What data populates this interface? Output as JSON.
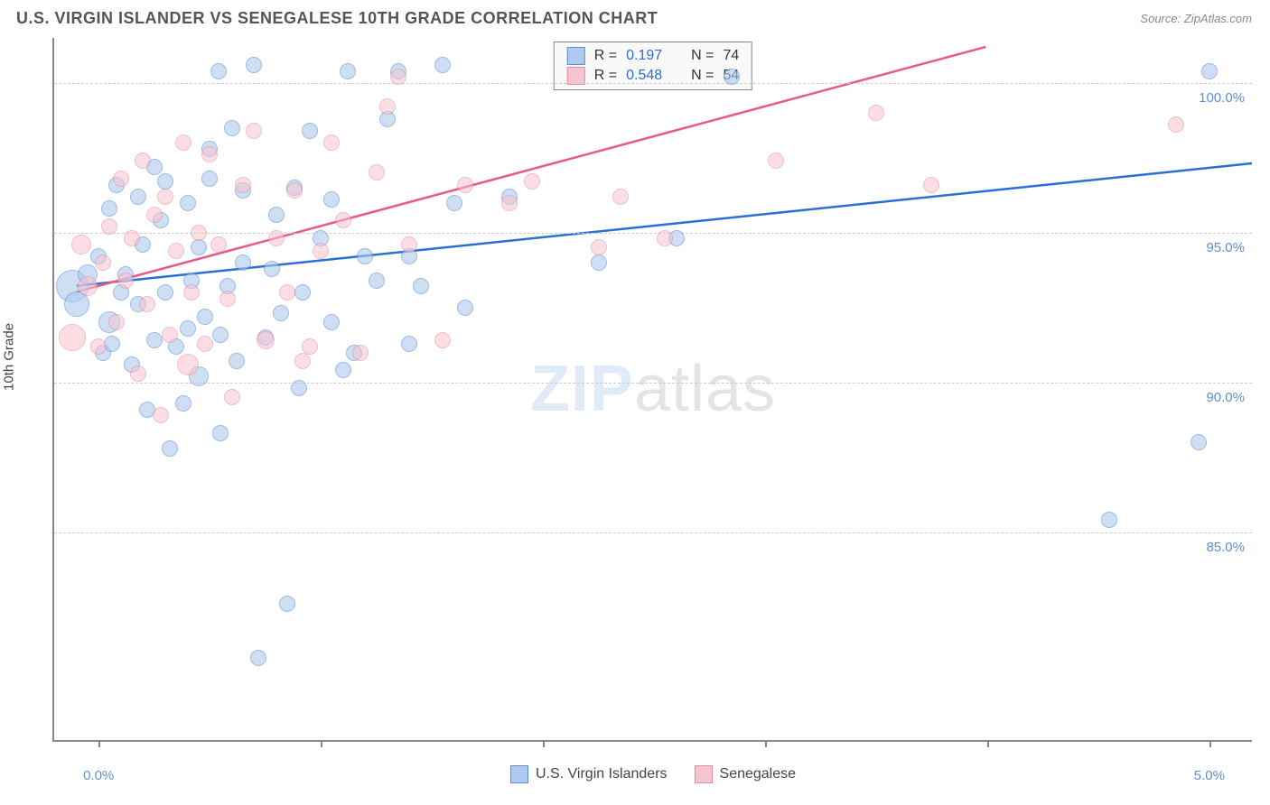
{
  "header": {
    "title": "U.S. VIRGIN ISLANDER VS SENEGALESE 10TH GRADE CORRELATION CHART",
    "source_label": "Source:",
    "source_value": "ZipAtlas.com"
  },
  "chart": {
    "type": "scatter",
    "ylabel": "10th Grade",
    "xlim": [
      -0.2,
      5.2
    ],
    "ylim": [
      78,
      101.5
    ],
    "xticks": [
      0,
      1,
      2,
      3,
      4,
      5
    ],
    "xtick_labels_shown": {
      "0": "0.0%",
      "5": "5.0%"
    },
    "yticks": [
      85,
      90,
      95,
      100
    ],
    "ytick_labels": [
      "85.0%",
      "90.0%",
      "95.0%",
      "100.0%"
    ],
    "grid_color": "#cccccc",
    "axis_color": "#888888",
    "background_color": "#ffffff",
    "watermark": {
      "text_bold": "ZIP",
      "text_rest": "atlas"
    },
    "series": [
      {
        "name": "U.S. Virgin Islanders",
        "fill_color": "#aecbee",
        "stroke_color": "#5b8fd6",
        "fill_opacity": 0.6,
        "marker_radius": 9,
        "trend": {
          "color": "#2b6fd4",
          "width": 2.5,
          "x1": -0.1,
          "y1": 93.2,
          "x2": 5.2,
          "y2": 97.3
        },
        "R": "0.197",
        "N": "74",
        "points": [
          [
            -0.12,
            93.2,
            18
          ],
          [
            -0.1,
            92.6,
            14
          ],
          [
            -0.05,
            93.6,
            11
          ],
          [
            0.0,
            94.2,
            9
          ],
          [
            0.02,
            91.0,
            9
          ],
          [
            0.05,
            92.0,
            12
          ],
          [
            0.05,
            95.8,
            9
          ],
          [
            0.06,
            91.3,
            9
          ],
          [
            0.08,
            96.6,
            9
          ],
          [
            0.1,
            93.0,
            9
          ],
          [
            0.12,
            93.6,
            9
          ],
          [
            0.15,
            90.6,
            9
          ],
          [
            0.18,
            92.6,
            9
          ],
          [
            0.18,
            96.2,
            9
          ],
          [
            0.2,
            94.6,
            9
          ],
          [
            0.22,
            89.1,
            9
          ],
          [
            0.25,
            97.2,
            9
          ],
          [
            0.25,
            91.4,
            9
          ],
          [
            0.28,
            95.4,
            9
          ],
          [
            0.3,
            93.0,
            9
          ],
          [
            0.3,
            96.7,
            9
          ],
          [
            0.32,
            87.8,
            9
          ],
          [
            0.35,
            91.2,
            9
          ],
          [
            0.38,
            89.3,
            9
          ],
          [
            0.4,
            96.0,
            9
          ],
          [
            0.4,
            91.8,
            9
          ],
          [
            0.42,
            93.4,
            9
          ],
          [
            0.45,
            94.5,
            9
          ],
          [
            0.45,
            90.2,
            11
          ],
          [
            0.48,
            92.2,
            9
          ],
          [
            0.5,
            97.8,
            9
          ],
          [
            0.5,
            96.8,
            9
          ],
          [
            0.54,
            100.4,
            9
          ],
          [
            0.55,
            91.6,
            9
          ],
          [
            0.55,
            88.3,
            9
          ],
          [
            0.58,
            93.2,
            9
          ],
          [
            0.6,
            98.5,
            9
          ],
          [
            0.62,
            90.7,
            9
          ],
          [
            0.65,
            94.0,
            9
          ],
          [
            0.65,
            96.4,
            9
          ],
          [
            0.7,
            100.6,
            9
          ],
          [
            0.72,
            80.8,
            9
          ],
          [
            0.75,
            91.5,
            9
          ],
          [
            0.78,
            93.8,
            9
          ],
          [
            0.8,
            95.6,
            9
          ],
          [
            0.82,
            92.3,
            9
          ],
          [
            0.85,
            82.6,
            9
          ],
          [
            0.88,
            96.5,
            9
          ],
          [
            0.9,
            89.8,
            9
          ],
          [
            0.92,
            93.0,
            9
          ],
          [
            0.95,
            98.4,
            9
          ],
          [
            1.0,
            94.8,
            9
          ],
          [
            1.05,
            92.0,
            9
          ],
          [
            1.05,
            96.1,
            9
          ],
          [
            1.1,
            90.4,
            9
          ],
          [
            1.12,
            100.4,
            9
          ],
          [
            1.15,
            91.0,
            9
          ],
          [
            1.2,
            94.2,
            9
          ],
          [
            1.25,
            93.4,
            9
          ],
          [
            1.3,
            98.8,
            9
          ],
          [
            1.35,
            100.4,
            9
          ],
          [
            1.4,
            94.2,
            9
          ],
          [
            1.4,
            91.3,
            9
          ],
          [
            1.45,
            93.2,
            9
          ],
          [
            1.55,
            100.6,
            9
          ],
          [
            1.6,
            96.0,
            9
          ],
          [
            1.65,
            92.5,
            9
          ],
          [
            1.85,
            96.2,
            9
          ],
          [
            2.25,
            94.0,
            9
          ],
          [
            2.6,
            94.8,
            9
          ],
          [
            2.85,
            100.2,
            9
          ],
          [
            4.55,
            85.4,
            9
          ],
          [
            4.95,
            88.0,
            9
          ],
          [
            5.0,
            100.4,
            9
          ]
        ]
      },
      {
        "name": "Senegalese",
        "fill_color": "#f6c4cf",
        "stroke_color": "#e68aa0",
        "fill_opacity": 0.55,
        "marker_radius": 9,
        "trend": {
          "color": "#e75a87",
          "width": 2.5,
          "x1": -0.1,
          "y1": 93.0,
          "x2": 4.0,
          "y2": 101.2
        },
        "R": "0.548",
        "N": "54",
        "points": [
          [
            -0.12,
            91.5,
            15
          ],
          [
            -0.08,
            94.6,
            11
          ],
          [
            -0.05,
            93.2,
            11
          ],
          [
            0.0,
            91.2,
            9
          ],
          [
            0.02,
            94.0,
            9
          ],
          [
            0.05,
            95.2,
            9
          ],
          [
            0.08,
            92.0,
            9
          ],
          [
            0.1,
            96.8,
            9
          ],
          [
            0.12,
            93.4,
            9
          ],
          [
            0.15,
            94.8,
            9
          ],
          [
            0.18,
            90.3,
            9
          ],
          [
            0.2,
            97.4,
            9
          ],
          [
            0.22,
            92.6,
            9
          ],
          [
            0.25,
            95.6,
            9
          ],
          [
            0.28,
            88.9,
            9
          ],
          [
            0.3,
            96.2,
            9
          ],
          [
            0.32,
            91.6,
            9
          ],
          [
            0.35,
            94.4,
            9
          ],
          [
            0.38,
            98.0,
            9
          ],
          [
            0.4,
            90.6,
            12
          ],
          [
            0.42,
            93.0,
            9
          ],
          [
            0.45,
            95.0,
            9
          ],
          [
            0.48,
            91.3,
            9
          ],
          [
            0.5,
            97.6,
            9
          ],
          [
            0.54,
            94.6,
            9
          ],
          [
            0.58,
            92.8,
            9
          ],
          [
            0.6,
            89.5,
            9
          ],
          [
            0.65,
            96.6,
            9
          ],
          [
            0.7,
            98.4,
            9
          ],
          [
            0.75,
            91.4,
            10
          ],
          [
            0.8,
            94.8,
            9
          ],
          [
            0.85,
            93.0,
            9
          ],
          [
            0.88,
            96.4,
            9
          ],
          [
            0.92,
            90.7,
            9
          ],
          [
            0.95,
            91.2,
            9
          ],
          [
            1.0,
            94.4,
            9
          ],
          [
            1.05,
            98.0,
            9
          ],
          [
            1.1,
            95.4,
            9
          ],
          [
            1.18,
            91.0,
            9
          ],
          [
            1.25,
            97.0,
            9
          ],
          [
            1.3,
            99.2,
            9
          ],
          [
            1.35,
            100.2,
            9
          ],
          [
            1.4,
            94.6,
            9
          ],
          [
            1.55,
            91.4,
            9
          ],
          [
            1.65,
            96.6,
            9
          ],
          [
            1.85,
            96.0,
            9
          ],
          [
            1.95,
            96.7,
            9
          ],
          [
            2.25,
            94.5,
            9
          ],
          [
            2.35,
            96.2,
            9
          ],
          [
            2.55,
            94.8,
            9
          ],
          [
            3.05,
            97.4,
            9
          ],
          [
            3.5,
            99.0,
            9
          ],
          [
            3.75,
            96.6,
            9
          ],
          [
            4.85,
            98.6,
            9
          ]
        ]
      }
    ],
    "legend": {
      "position": "bottom-center",
      "items": [
        {
          "label": "U.S. Virgin Islanders",
          "fill": "#aecbee",
          "stroke": "#5b8fd6"
        },
        {
          "label": "Senegalese",
          "fill": "#f6c4cf",
          "stroke": "#e68aa0"
        }
      ]
    },
    "rn_box": {
      "rows": [
        {
          "fill": "#aecbee",
          "stroke": "#5b8fd6",
          "R": "0.197",
          "N": "74"
        },
        {
          "fill": "#f6c4cf",
          "stroke": "#e68aa0",
          "R": "0.548",
          "N": "54"
        }
      ]
    }
  }
}
